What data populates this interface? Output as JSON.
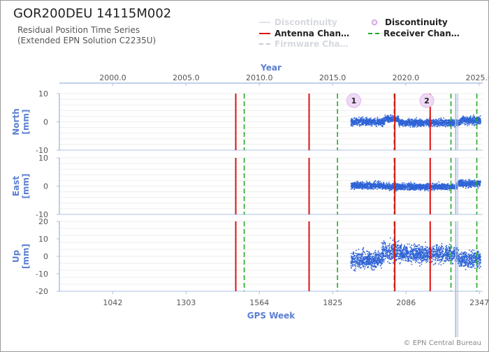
{
  "header": {
    "title": "GOR200DEU 14115M002",
    "subtitle_line1": "Residual Position Time Series",
    "subtitle_line2": "(Extended EPN Solution C2235U)"
  },
  "legend": [
    {
      "label": "Discontinuity",
      "style": "line",
      "color": "#dfe3ea",
      "dashed": false,
      "faded": true
    },
    {
      "label": "Discontinuity",
      "style": "marker",
      "color": "#c080d0",
      "dashed": false,
      "faded": false
    },
    {
      "label": "Antenna Chan…",
      "style": "line",
      "color": "#dd1111",
      "dashed": false,
      "faded": false
    },
    {
      "label": "Receiver Chan…",
      "style": "line",
      "color": "#22aa22",
      "dashed": true,
      "faded": false
    },
    {
      "label": "Firmware Cha…",
      "style": "line",
      "color": "#c8ccd4",
      "dashed": true,
      "faded": true
    }
  ],
  "credit": "© EPN Central Bureau",
  "chart_data": {
    "type": "scatter",
    "top_axis": {
      "label": "Year",
      "ticks": [
        "2000.0",
        "2005.0",
        "2010.0",
        "2015.0",
        "2020.0",
        "2025.0"
      ],
      "tick_values": [
        2000.0,
        2005.0,
        2010.0,
        2015.0,
        2020.0,
        2025.0
      ],
      "range": [
        1996.35,
        2025.25
      ]
    },
    "bottom_axis": {
      "label": "GPS Week",
      "ticks": [
        "1042",
        "1303",
        "1564",
        "1825",
        "2086",
        "2347"
      ],
      "tick_values": [
        1042,
        1303,
        1564,
        1825,
        2086,
        2347
      ],
      "range": [
        852,
        2359
      ]
    },
    "panels": [
      {
        "name": "North",
        "ylabel": "North\n[mm]",
        "ylim": [
          -10,
          10
        ],
        "yticks": [
          "10",
          "0",
          "-10"
        ],
        "ytick_values": [
          10,
          0,
          -10
        ],
        "data_start": 1890,
        "data_end": 2352,
        "segments": [
          {
            "from": 1890,
            "to": 2010,
            "level": 0.0,
            "noise": 1.2
          },
          {
            "from": 2010,
            "to": 2060,
            "level": 1.0,
            "noise": 1.0
          },
          {
            "from": 2060,
            "to": 2280,
            "level": -0.3,
            "noise": 1.1
          },
          {
            "from": 2280,
            "to": 2352,
            "level": 0.5,
            "noise": 1.3
          }
        ]
      },
      {
        "name": "East",
        "ylabel": "East\n[mm]",
        "ylim": [
          -10,
          10
        ],
        "yticks": [
          "10",
          "0",
          "-10"
        ],
        "ytick_values": [
          10,
          0,
          -10
        ],
        "data_start": 1890,
        "data_end": 2352,
        "segments": [
          {
            "from": 1890,
            "to": 2010,
            "level": 0.2,
            "noise": 1.1
          },
          {
            "from": 2010,
            "to": 2270,
            "level": -0.2,
            "noise": 1.0
          },
          {
            "from": 2270,
            "to": 2352,
            "level": 0.9,
            "noise": 1.2
          }
        ]
      },
      {
        "name": "Up",
        "ylabel": "Up\n[mm]",
        "ylim": [
          -20,
          20
        ],
        "yticks": [
          "20",
          "10",
          "0",
          "-10",
          "-20"
        ],
        "ytick_values": [
          20,
          10,
          0,
          -10,
          -20
        ],
        "data_start": 1890,
        "data_end": 2352,
        "segments": [
          {
            "from": 1890,
            "to": 2000,
            "level": -2.0,
            "noise": 4.5
          },
          {
            "from": 2000,
            "to": 2060,
            "level": 2.5,
            "noise": 5.5
          },
          {
            "from": 2060,
            "to": 2270,
            "level": 1.5,
            "noise": 4.5
          },
          {
            "from": 2270,
            "to": 2352,
            "level": -1.5,
            "noise": 4.5
          }
        ]
      }
    ],
    "events": [
      {
        "type": "receiver",
        "week": 1480
      },
      {
        "type": "antenna",
        "week": 1480
      },
      {
        "type": "receiver",
        "week": 1510
      },
      {
        "type": "antenna",
        "week": 1741
      },
      {
        "type": "receiver",
        "week": 1842
      },
      {
        "type": "receiver",
        "week": 2044
      },
      {
        "type": "antenna",
        "week": 2046
      },
      {
        "type": "antenna",
        "week": 2172
      },
      {
        "type": "receiver",
        "week": 2246
      },
      {
        "type": "firmware",
        "week": 2262
      },
      {
        "type": "firmware",
        "week": 2264
      },
      {
        "type": "firmware",
        "week": 2270
      },
      {
        "type": "receiver",
        "week": 2338
      }
    ],
    "discontinuity_markers": [
      {
        "label": "1",
        "week": 1900
      },
      {
        "label": "2",
        "week": 2160
      }
    ]
  }
}
